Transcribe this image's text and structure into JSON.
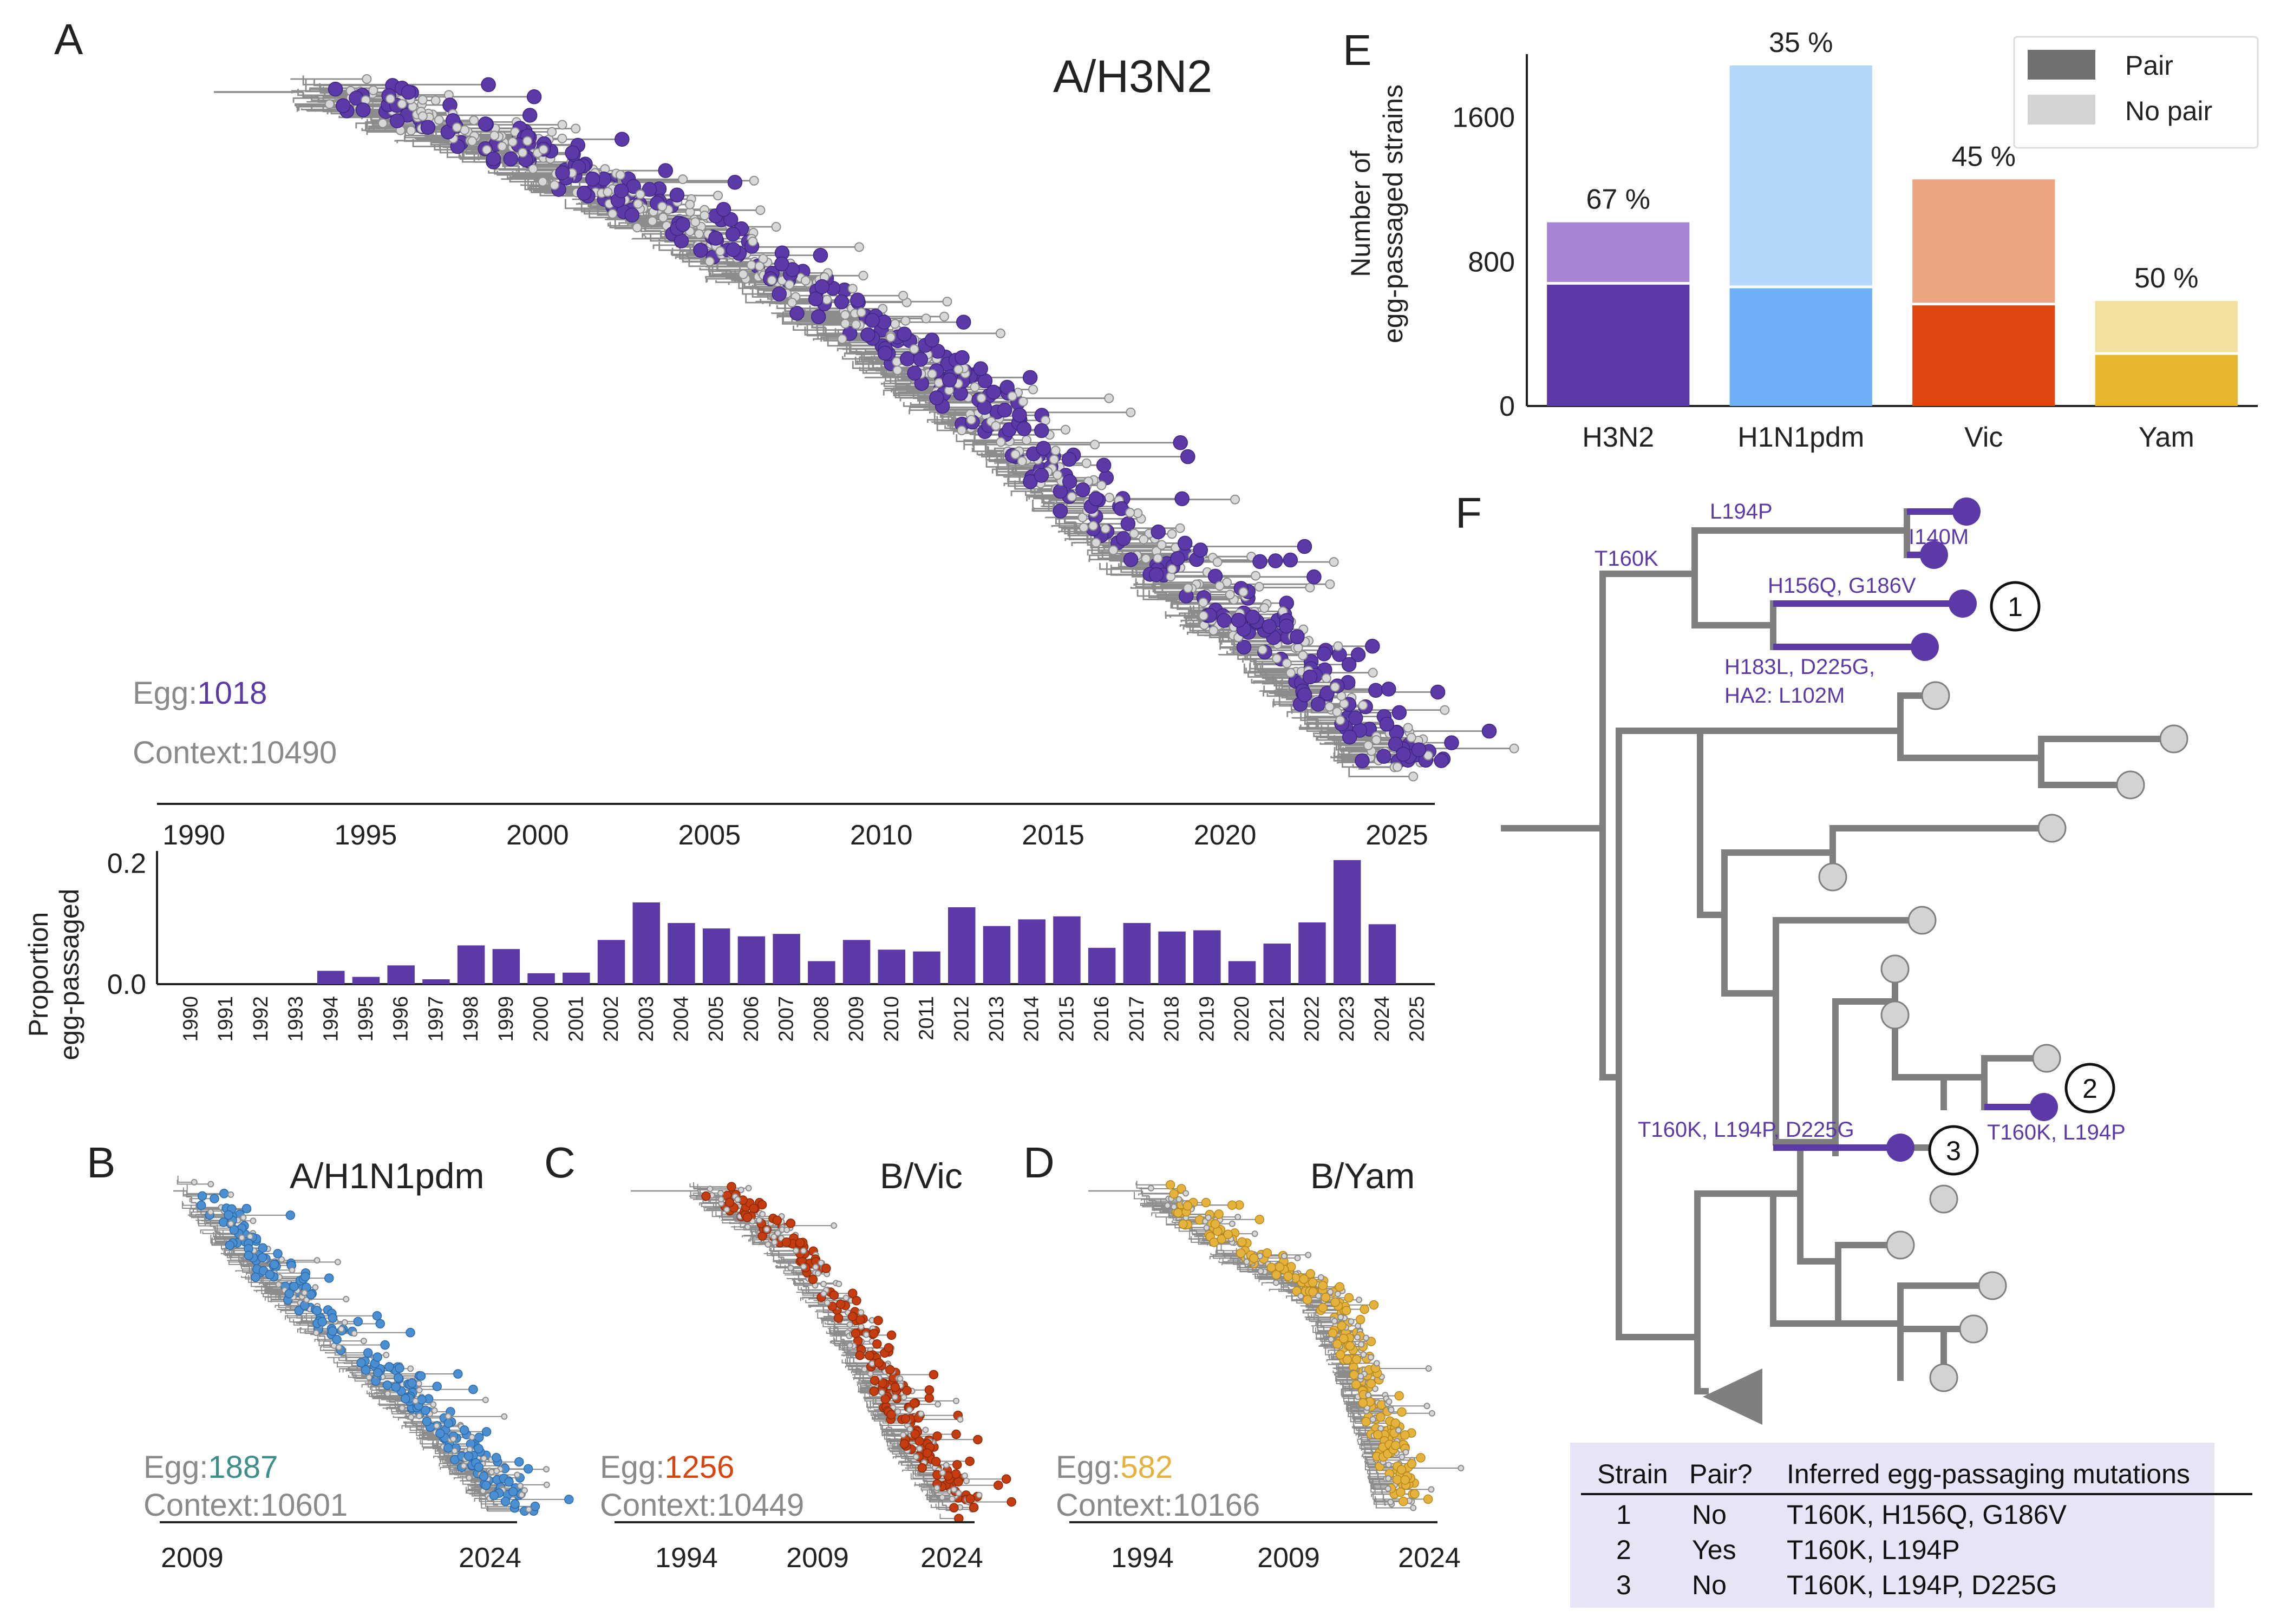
{
  "panels": {
    "A": {
      "letter": "A",
      "title": "A/H3N2",
      "egg_label": "Egg:",
      "egg_count": "1018",
      "context_label": "Context:",
      "context_count": "10490",
      "axis_years": [
        "1990",
        "1995",
        "2000",
        "2005",
        "2010",
        "2015",
        "2020",
        "2025"
      ],
      "egg_color": "#5b3aa8"
    },
    "B": {
      "letter": "B",
      "title": "A/H1N1pdm",
      "egg_label": "Egg:",
      "egg_count": "1887",
      "context_label": "Context:",
      "context_count": "10601",
      "axis_years": [
        "2009",
        "2024"
      ],
      "egg_color": "#4a8fd1",
      "egg_count_color": "#3d8f8a"
    },
    "C": {
      "letter": "C",
      "title": "B/Vic",
      "egg_label": "Egg:",
      "egg_count": "1256",
      "context_label": "Context:",
      "context_count": "10449",
      "axis_years": [
        "1994",
        "2009",
        "2024"
      ],
      "egg_color": "#c43c0f",
      "egg_count_color": "#d9430f"
    },
    "D": {
      "letter": "D",
      "title": "B/Yam",
      "egg_label": "Egg:",
      "egg_count": "582",
      "context_label": "Context:",
      "context_count": "10166",
      "axis_years": [
        "1994",
        "2009",
        "2024"
      ],
      "egg_color": "#e5b33c",
      "egg_count_color": "#e5b33c"
    },
    "E": {
      "letter": "E"
    },
    "F": {
      "letter": "F"
    }
  },
  "chart_data": [
    {
      "type": "bar",
      "panel": "A-bottom",
      "ylabel": [
        "Proportion",
        "egg-passaged"
      ],
      "ylim": [
        0,
        0.22
      ],
      "yticks": [
        "0.0",
        "0.2"
      ],
      "categories": [
        "1990",
        "1991",
        "1992",
        "1993",
        "1994",
        "1995",
        "1996",
        "1997",
        "1998",
        "1999",
        "2000",
        "2001",
        "2002",
        "2003",
        "2004",
        "2005",
        "2006",
        "2007",
        "2008",
        "2009",
        "2010",
        "2011",
        "2012",
        "2013",
        "2014",
        "2015",
        "2016",
        "2017",
        "2018",
        "2019",
        "2020",
        "2021",
        "2022",
        "2023",
        "2024",
        "2025"
      ],
      "values": [
        0,
        0,
        0,
        0,
        0.022,
        0.012,
        0.031,
        0.008,
        0.064,
        0.058,
        0.018,
        0.019,
        0.073,
        0.135,
        0.101,
        0.092,
        0.079,
        0.083,
        0.038,
        0.073,
        0.057,
        0.054,
        0.127,
        0.096,
        0.107,
        0.112,
        0.06,
        0.101,
        0.087,
        0.089,
        0.038,
        0.067,
        0.102,
        0.205,
        0.099,
        0
      ],
      "color": "#5b3aa8"
    },
    {
      "type": "bar",
      "panel": "E",
      "ylabel": [
        "Number of",
        "egg-passaged strains"
      ],
      "ylim": [
        0,
        1950
      ],
      "yticks": [
        "0",
        "800",
        "1600"
      ],
      "categories": [
        "H3N2",
        "H1N1pdm",
        "Vic",
        "Yam"
      ],
      "series": [
        {
          "name": "Pair",
          "values": [
            680,
            660,
            565,
            291
          ]
        },
        {
          "name": "No pair",
          "values": [
            338,
            1227,
            691,
            291
          ]
        }
      ],
      "percent_labels": [
        "67 %",
        "35 %",
        "45 %",
        "50 %"
      ],
      "colors_pair": [
        "#5b3aa8",
        "#6eb0f5",
        "#de4710",
        "#e9b52f"
      ],
      "colors_nopair": [
        "#a584d4",
        "#b3d7fb",
        "#eca482",
        "#f3df9c"
      ],
      "legend": {
        "position": "top-right",
        "pair": "Pair",
        "nopair": "No pair",
        "pair_color": "#707070",
        "nopair_color": "#d4d4d4"
      }
    }
  ],
  "panel_F": {
    "mutations": [
      {
        "id": "t160k",
        "text": "T160K"
      },
      {
        "id": "l194p",
        "text": "L194P"
      },
      {
        "id": "i140m",
        "text": "I140M"
      },
      {
        "id": "h156q",
        "text": "H156Q, G186V"
      },
      {
        "id": "h183l_1",
        "text": "H183L, D225G,"
      },
      {
        "id": "h183l_2",
        "text": "HA2: L102M"
      },
      {
        "id": "m2",
        "text": "T160K, L194P"
      },
      {
        "id": "m3",
        "text": "T160K, L194P, D225G"
      }
    ],
    "strain_markers": [
      "1",
      "2",
      "3"
    ],
    "table": {
      "headers": [
        "Strain",
        "Pair?",
        "Inferred egg-passaging mutations"
      ],
      "rows": [
        [
          "1",
          "No",
          "T160K, H156Q, G186V"
        ],
        [
          "2",
          "Yes",
          "T160K, L194P"
        ],
        [
          "3",
          "No",
          "T160K, L194P, D225G"
        ]
      ],
      "background": "#e8e4f6"
    },
    "colors": {
      "branch": "#7f7f7f",
      "egg": "#5b3aa8",
      "tip": "#d3d3d3"
    }
  }
}
